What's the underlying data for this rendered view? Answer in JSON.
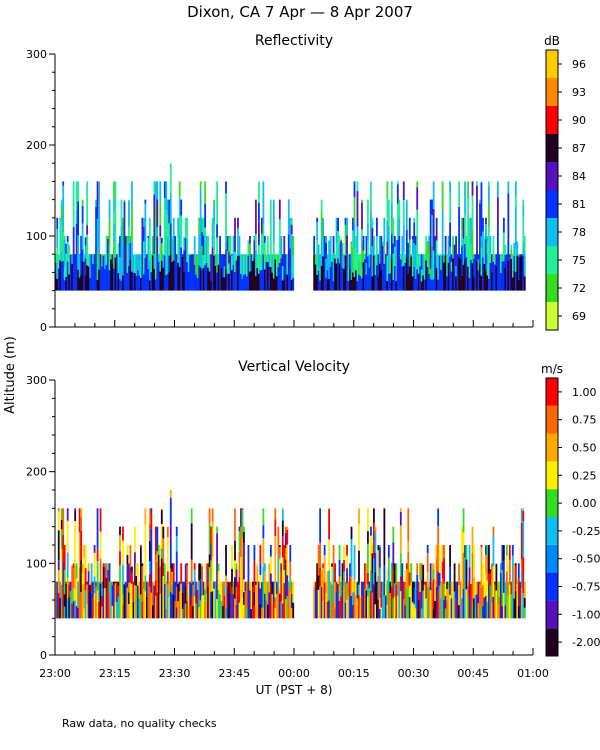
{
  "title": "Dixon, CA  7 Apr —  8 Apr 2007",
  "ylabel": "Altitude (m)",
  "xlabel": "UT  (PST + 8)",
  "footnote": "Raw data, no quality checks",
  "chart_data": [
    {
      "type": "heatmap",
      "title": "Reflectivity",
      "colorbar_unit": "dB",
      "colorbar_ticks": [
        "69",
        "72",
        "75",
        "78",
        "81",
        "84",
        "87",
        "90",
        "93",
        "96"
      ],
      "colorbar_colors": [
        "#ccff33",
        "#33dd22",
        "#22ee99",
        "#11bbee",
        "#0033ff",
        "#5511bb",
        "#220022",
        "#ff0000",
        "#ff8800",
        "#ffcc00"
      ],
      "xlim_minutes": [
        0,
        120
      ],
      "x_tick_labels": [
        "23:00",
        "23:15",
        "23:30",
        "23:45",
        "00:00",
        "00:15",
        "00:30",
        "00:45",
        "01:00"
      ],
      "ylim": [
        0,
        300
      ],
      "y_ticks": [
        0,
        100,
        200,
        300
      ],
      "data_gap_minutes": [
        60,
        65
      ],
      "echo_base_altitude_m": 40,
      "echo_top_max_altitude_m": 180,
      "echo_top_max_time": "23:29"
    },
    {
      "type": "heatmap",
      "title": "Vertical Velocity",
      "colorbar_unit": "m/s",
      "colorbar_ticks": [
        "-2.00",
        "-1.00",
        "-0.75",
        "-0.50",
        "-0.25",
        "0.00",
        "0.25",
        "0.50",
        "0.75",
        "1.00"
      ],
      "colorbar_colors": [
        "#220022",
        "#5511bb",
        "#0033ff",
        "#0088ff",
        "#11bbee",
        "#33dd22",
        "#ffee00",
        "#ffaa00",
        "#ff6600",
        "#ff0000"
      ],
      "xlim_minutes": [
        0,
        120
      ],
      "x_tick_labels": [
        "23:00",
        "23:15",
        "23:30",
        "23:45",
        "00:00",
        "00:15",
        "00:30",
        "00:45",
        "01:00"
      ],
      "ylim": [
        0,
        300
      ],
      "y_ticks": [
        0,
        100,
        200,
        300
      ],
      "data_gap_minutes": [
        60,
        65
      ],
      "echo_base_altitude_m": 40,
      "echo_top_max_altitude_m": 180,
      "echo_top_max_time": "23:29"
    }
  ]
}
